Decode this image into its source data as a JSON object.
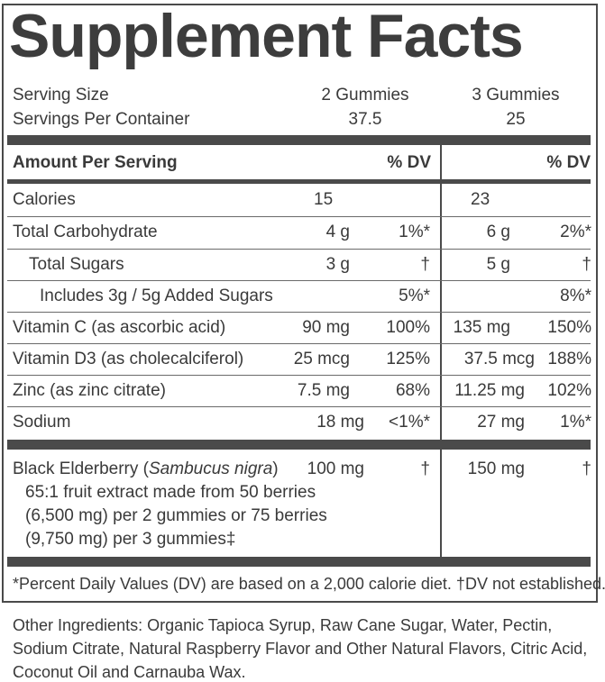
{
  "title": "Supplement Facts",
  "serving_size_label": "Serving Size",
  "servings_per_container_label": "Servings Per Container",
  "columns": [
    {
      "serving": "2 Gummies",
      "servings_per_container": "37.5"
    },
    {
      "serving": "3 Gummies",
      "servings_per_container": "25"
    }
  ],
  "amount_header": "Amount Per Serving",
  "dv_header": "% DV",
  "rows": [
    {
      "name": "Calories",
      "a1": "15",
      "d1": "",
      "a2": "23",
      "d2": ""
    },
    {
      "name": "Total Carbohydrate",
      "a1": "4 g",
      "d1": "1%*",
      "a2": "6 g",
      "d2": "2%*"
    },
    {
      "name": "Total Sugars",
      "a1": "3 g",
      "d1": "†",
      "a2": "5 g",
      "d2": "†"
    },
    {
      "name": "Includes 3g / 5g Added Sugars",
      "a1": "",
      "d1": "5%*",
      "a2": "",
      "d2": "8%*"
    },
    {
      "name": "Vitamin C (as ascorbic acid)",
      "a1": "90 mg",
      "d1": "100%",
      "a2": "135 mg",
      "d2": "150%"
    },
    {
      "name": "Vitamin D3 (as cholecalciferol)",
      "a1": "25 mcg",
      "d1": "125%",
      "a2": "37.5 mcg",
      "d2": "188%"
    },
    {
      "name": "Zinc (as zinc citrate)",
      "a1": "7.5 mg",
      "d1": "68%",
      "a2": "11.25 mg",
      "d2": "102%"
    },
    {
      "name": "Sodium",
      "a1": "18 mg",
      "d1": "<1%*",
      "a2": "27 mg",
      "d2": "1%*"
    }
  ],
  "elderberry": {
    "name": "Black Elderberry (",
    "latin": "Sambucus nigra",
    "close": ")",
    "a1": "100 mg",
    "d1": "†",
    "a2": "150 mg",
    "d2": "†",
    "desc1": "65:1 fruit extract made from 50 berries",
    "desc2": "(6,500 mg) per 2 gummies or 75 berries",
    "desc3": "(9,750 mg) per 3 gummies‡"
  },
  "footnote": "*Percent Daily Values (DV) are based on a 2,000 calorie diet. †DV not established.",
  "other_ingredients": {
    "line1": "Other Ingredients: Organic Tapioca Syrup, Raw Cane Sugar, Water, Pectin,",
    "line2": "Sodium Citrate, Natural Raspberry Flavor and Other Natural Flavors, Citric Acid,",
    "line3": "Coconut Oil and Carnauba Wax."
  }
}
